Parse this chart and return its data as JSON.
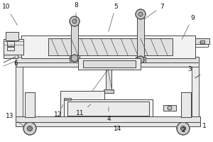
{
  "bg": "#ffffff",
  "lc": "#4a4a4a",
  "figsize": [
    3.0,
    2.0
  ],
  "dpi": 100,
  "annotations": [
    [
      "10",
      9,
      10,
      26,
      38
    ],
    [
      "8",
      107,
      8,
      107,
      32
    ],
    [
      "5",
      163,
      9,
      152,
      47
    ],
    [
      "7",
      228,
      9,
      202,
      28
    ],
    [
      "9",
      271,
      25,
      255,
      58
    ],
    [
      "6",
      22,
      90,
      25,
      95
    ],
    [
      "3",
      267,
      98,
      274,
      108
    ],
    [
      "13",
      14,
      163,
      37,
      180
    ],
    [
      "12",
      82,
      162,
      90,
      145
    ],
    [
      "11",
      113,
      160,
      130,
      145
    ],
    [
      "4",
      153,
      167,
      153,
      148
    ],
    [
      "14",
      166,
      181,
      166,
      176
    ],
    [
      "2",
      258,
      183,
      248,
      180
    ],
    [
      "1",
      288,
      178,
      282,
      175
    ]
  ]
}
